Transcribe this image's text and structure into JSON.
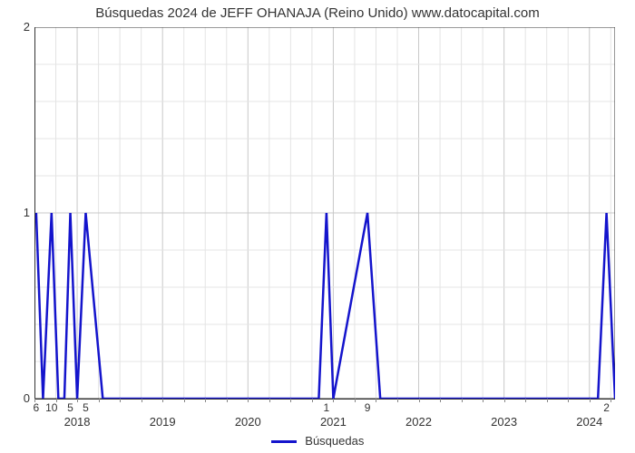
{
  "chart": {
    "type": "line",
    "title": "Búsquedas 2024 de JEFF OHANAJA (Reino Unido) www.datocapital.com",
    "title_fontsize": 15,
    "title_color": "#333333",
    "background_color": "#ffffff",
    "plot_border_color": "#333333",
    "grid_major_color": "#c8c8c8",
    "grid_minor_color": "#e4e4e4",
    "line_color": "#1414cc",
    "line_width": 2.5,
    "ylim": [
      0,
      2
    ],
    "ytick_positions": [
      0,
      1,
      2
    ],
    "ytick_labels": [
      "0",
      "1",
      "2"
    ],
    "y_minor_count": 4,
    "xlim": [
      2017.5,
      2024.3
    ],
    "xtick_positions": [
      2018,
      2019,
      2020,
      2021,
      2022,
      2023,
      2024
    ],
    "xtick_labels": [
      "2018",
      "2019",
      "2020",
      "2021",
      "2022",
      "2023",
      "2024"
    ],
    "x_minor_step": 0.25,
    "data_points": {
      "x": [
        2017.52,
        2017.6,
        2017.7,
        2017.78,
        2017.85,
        2017.92,
        2018.0,
        2018.1,
        2018.3,
        2018.38,
        2018.52,
        2020.83,
        2020.92,
        2021.0,
        2021.4,
        2021.55,
        2021.7,
        2024.1,
        2024.2,
        2024.3
      ],
      "y": [
        1,
        0,
        1,
        0,
        0,
        1,
        0,
        1,
        0,
        0,
        0,
        0,
        1,
        0,
        1,
        0,
        0,
        0,
        1,
        0
      ]
    },
    "data_labels": [
      {
        "x": 2017.52,
        "y": 1,
        "text": "6"
      },
      {
        "x": 2017.7,
        "y": 1,
        "text": "10"
      },
      {
        "x": 2017.92,
        "y": 1,
        "text": "5"
      },
      {
        "x": 2018.1,
        "y": 1,
        "text": "5"
      },
      {
        "x": 2020.92,
        "y": 1,
        "text": "1"
      },
      {
        "x": 2021.4,
        "y": 1,
        "text": "9"
      },
      {
        "x": 2024.2,
        "y": 1,
        "text": "2"
      }
    ],
    "legend": {
      "label": "Búsquedas",
      "color": "#1414cc"
    },
    "axis_label_fontsize": 13,
    "data_label_fontsize": 12
  }
}
